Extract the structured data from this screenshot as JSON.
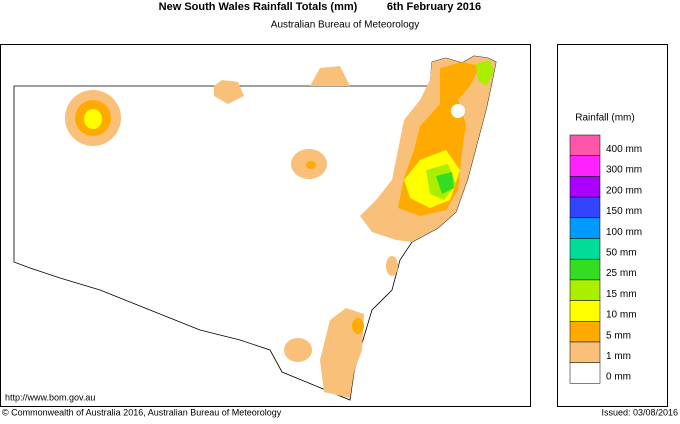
{
  "header": {
    "title": "New South Wales Rainfall Totals (mm)",
    "date": "6th February 2016",
    "subtitle": "Australian Bureau of Meteorology"
  },
  "legend": {
    "title": "Rainfall (mm)",
    "items": [
      {
        "label": "400 mm",
        "color": "#ff55aa"
      },
      {
        "label": "300 mm",
        "color": "#ff22ff"
      },
      {
        "label": "200 mm",
        "color": "#aa00ff"
      },
      {
        "label": "150 mm",
        "color": "#3344ff"
      },
      {
        "label": "100 mm",
        "color": "#0099ff"
      },
      {
        "label": "50 mm",
        "color": "#00dd99"
      },
      {
        "label": "25 mm",
        "color": "#33dd22"
      },
      {
        "label": "15 mm",
        "color": "#aaee00"
      },
      {
        "label": "10 mm",
        "color": "#ffff00"
      },
      {
        "label": "5 mm",
        "color": "#ffaa00"
      },
      {
        "label": "1 mm",
        "color": "#f9c07a"
      },
      {
        "label": "0 mm",
        "color": "#ffffff"
      }
    ]
  },
  "footer": {
    "url": "http://www.bom.gov.au",
    "copyright": "© Commonwealth of Australia 2016, Australian Bureau of Meteorology",
    "issued": "Issued: 03/08/2016"
  }
}
